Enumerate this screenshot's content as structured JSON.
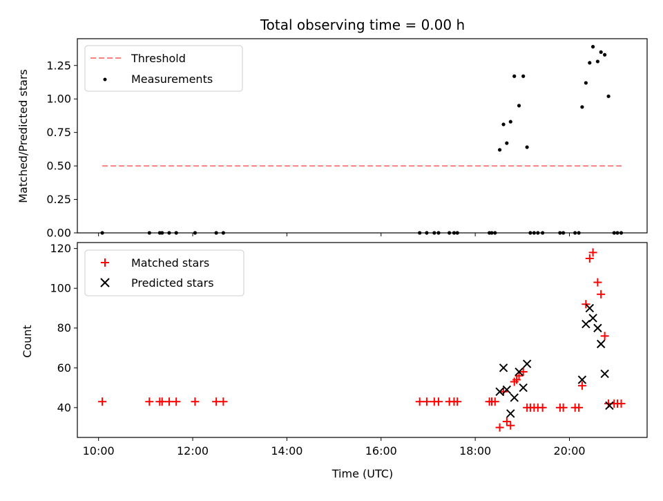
{
  "chart_data": [
    {
      "type": "scatter",
      "title": "Total observing time = 0.00 h",
      "ylabel": "Matched/Predicted stars",
      "xlabel": "",
      "x_unit": "hours UTC",
      "xlim": [
        9.55,
        21.65
      ],
      "ylim": [
        0,
        1.45
      ],
      "yticks": [
        0.0,
        0.25,
        0.5,
        0.75,
        1.0,
        1.25
      ],
      "ytick_labels": [
        "0.00",
        "0.25",
        "0.50",
        "0.75",
        "1.00",
        "1.25"
      ],
      "legend_position": "top-left",
      "grid": false,
      "series": [
        {
          "name": "Threshold",
          "kind": "line",
          "style": "dashed",
          "color": "#ff7f7f",
          "x": [
            10.08,
            21.12
          ],
          "y": [
            0.5,
            0.5
          ]
        },
        {
          "name": "Measurements",
          "kind": "scatter",
          "marker": "dot",
          "color": "#000000",
          "x": [
            10.08,
            11.08,
            11.3,
            11.35,
            11.5,
            11.65,
            12.05,
            12.5,
            12.65,
            16.82,
            16.97,
            17.13,
            17.22,
            17.45,
            17.55,
            17.62,
            18.3,
            18.35,
            18.42,
            18.52,
            18.6,
            18.67,
            18.75,
            18.83,
            18.93,
            19.02,
            19.1,
            19.17,
            19.25,
            19.33,
            19.43,
            19.8,
            19.87,
            20.12,
            20.2,
            20.27,
            20.35,
            20.43,
            20.5,
            20.6,
            20.67,
            20.75,
            20.83,
            20.95,
            21.02,
            21.1
          ],
          "y": [
            0,
            0,
            0,
            0,
            0,
            0,
            0,
            0,
            0,
            0,
            0,
            0,
            0,
            0,
            0,
            0,
            0,
            0,
            0,
            0.62,
            0.81,
            0.67,
            0.83,
            1.17,
            0.95,
            1.17,
            0.64,
            0,
            0,
            0,
            0,
            0,
            0,
            0,
            0,
            0.94,
            1.12,
            1.27,
            1.39,
            1.28,
            1.35,
            1.33,
            1.02,
            0,
            0,
            0
          ]
        }
      ]
    },
    {
      "type": "scatter",
      "title": "",
      "ylabel": "Count",
      "xlabel": "Time (UTC)",
      "x_unit": "hours UTC",
      "xlim": [
        9.55,
        21.65
      ],
      "xticks": [
        10,
        12,
        14,
        16,
        18,
        20
      ],
      "xtick_labels": [
        "10:00",
        "12:00",
        "14:00",
        "16:00",
        "18:00",
        "20:00"
      ],
      "ylim": [
        25,
        123
      ],
      "yticks": [
        40,
        60,
        80,
        100,
        120
      ],
      "ytick_labels": [
        "40",
        "60",
        "80",
        "100",
        "120"
      ],
      "legend_position": "top-left",
      "grid": false,
      "series": [
        {
          "name": "Matched stars",
          "kind": "scatter",
          "marker": "plus",
          "color": "#ff0000",
          "x": [
            10.08,
            11.08,
            11.3,
            11.35,
            11.5,
            11.65,
            12.05,
            12.5,
            12.65,
            16.82,
            16.97,
            17.13,
            17.22,
            17.45,
            17.55,
            17.62,
            18.3,
            18.35,
            18.42,
            18.52,
            18.6,
            18.67,
            18.75,
            18.83,
            18.88,
            18.93,
            19.02,
            19.1,
            19.17,
            19.25,
            19.33,
            19.43,
            19.8,
            19.87,
            20.12,
            20.2,
            20.27,
            20.35,
            20.43,
            20.5,
            20.6,
            20.67,
            20.75,
            20.83,
            20.95,
            21.02,
            21.1
          ],
          "y": [
            43,
            43,
            43,
            43,
            43,
            43,
            43,
            43,
            43,
            43,
            43,
            43,
            43,
            43,
            43,
            43,
            43,
            43,
            43,
            30,
            48,
            33,
            31,
            53,
            54,
            56,
            58,
            40,
            40,
            40,
            40,
            40,
            40,
            40,
            40,
            40,
            51,
            92,
            115,
            118,
            103,
            97,
            76,
            42,
            42,
            42,
            42
          ]
        },
        {
          "name": "Predicted stars",
          "kind": "scatter",
          "marker": "x",
          "color": "#000000",
          "x": [
            18.52,
            18.6,
            18.67,
            18.75,
            18.83,
            18.93,
            19.02,
            19.1,
            20.27,
            20.35,
            20.43,
            20.5,
            20.6,
            20.67,
            20.75,
            20.85
          ],
          "y": [
            48,
            60,
            49,
            37,
            45,
            58,
            50,
            62,
            54,
            82,
            90,
            85,
            80,
            72,
            57,
            41
          ]
        }
      ]
    }
  ]
}
